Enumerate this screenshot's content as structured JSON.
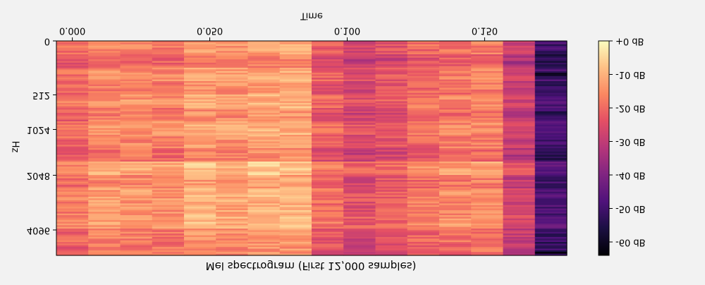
{
  "chart_data": {
    "type": "heatmap",
    "title": "Mel spectrogram (First 12,000 samples)",
    "xlabel": "Time",
    "ylabel": "Hz",
    "x_ticks": [
      {
        "label": "0.000",
        "value": 0.0
      },
      {
        "label": "0.050",
        "value": 0.05
      },
      {
        "label": "0.100",
        "value": 0.1
      },
      {
        "label": "0.150",
        "value": 0.15
      }
    ],
    "x_range": [
      -0.0058,
      0.1799
    ],
    "y_ticks": [
      {
        "label": "0",
        "value": 0
      },
      {
        "label": "512",
        "value": 512
      },
      {
        "label": "1024",
        "value": 1024
      },
      {
        "label": "2048",
        "value": 2048
      },
      {
        "label": "4096",
        "value": 4096
      }
    ],
    "colorbar": {
      "ticks": [
        {
          "label": "+0 dB",
          "value": 0
        },
        {
          "label": "-10 dB",
          "value": -10
        },
        {
          "label": "-20 dB",
          "value": -20
        },
        {
          "label": "-30 dB",
          "value": -30
        },
        {
          "label": "-40 dB",
          "value": -40
        },
        {
          "label": "-50 dB",
          "value": -50
        },
        {
          "label": "-60 dB",
          "value": -60
        }
      ],
      "range": [
        -64,
        0
      ],
      "colormap": "magma"
    },
    "frames": 16,
    "mel_bands": 128,
    "frame_profile_db": [
      -18,
      -14,
      -14,
      -15,
      -11,
      -12,
      -10,
      -10,
      -20,
      -24,
      -22,
      -18,
      -16,
      -15,
      -27,
      -48
    ],
    "band_profile_db": [
      -2,
      -6,
      -1,
      -3,
      0,
      -4,
      0,
      -2,
      -5,
      3,
      -2,
      1,
      0,
      2,
      -3,
      -4
    ],
    "orientation": "mirrored"
  }
}
